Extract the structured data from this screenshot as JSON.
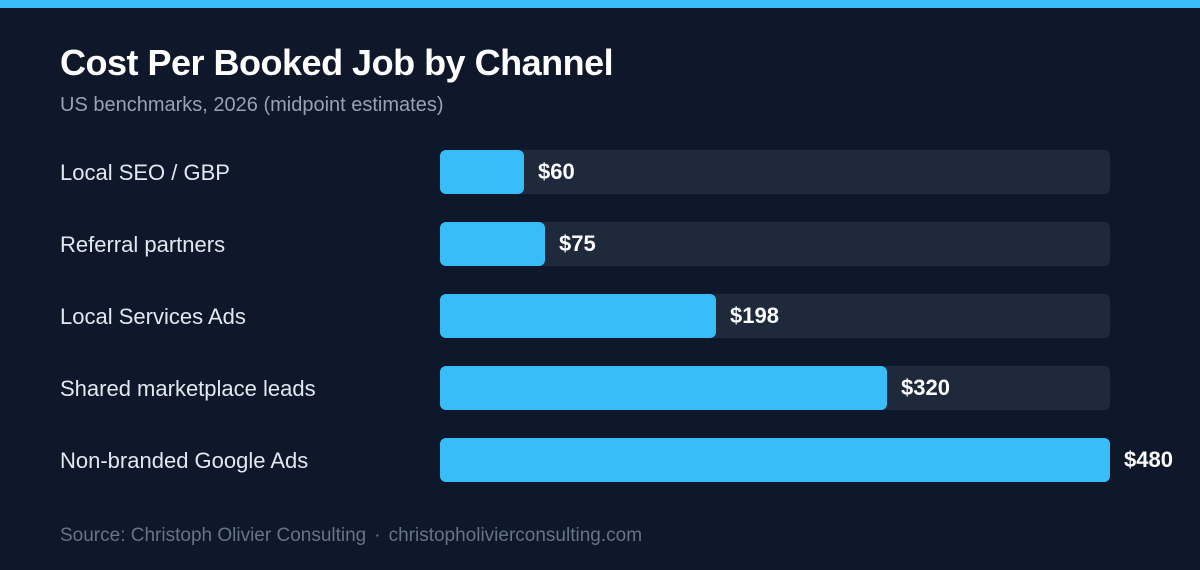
{
  "header": {
    "title": "Cost Per Booked Job by Channel",
    "subtitle": "US benchmarks, 2026 (midpoint estimates)"
  },
  "footer": {
    "source": "Source: Christoph Olivier Consulting",
    "separator": "·",
    "site": "christopholivierconsulting.com"
  },
  "colors": {
    "background": "#0f172a",
    "accent": "#38bdf8",
    "track": "#1e293b"
  },
  "chart_data": {
    "type": "bar",
    "orientation": "horizontal",
    "title": "Cost Per Booked Job by Channel",
    "subtitle": "US benchmarks, 2026 (midpoint estimates)",
    "categories": [
      "Local SEO / GBP",
      "Referral partners",
      "Local Services Ads",
      "Shared marketplace leads",
      "Non-branded Google Ads"
    ],
    "values": [
      60,
      75,
      198,
      320,
      480
    ],
    "value_labels": [
      "$60",
      "$75",
      "$198",
      "$320",
      "$480"
    ],
    "xlim": [
      0,
      480
    ],
    "grid": false,
    "legend": "none"
  }
}
